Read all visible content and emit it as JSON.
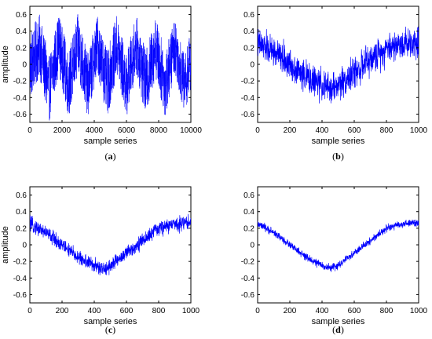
{
  "chart_data": [
    {
      "type": "line",
      "caption": "(a)",
      "xlabel": "sample series",
      "ylabel": "amplitude",
      "xlim": [
        0,
        10000
      ],
      "ylim": [
        -0.7,
        0.7
      ],
      "xticks": [
        0,
        2000,
        4000,
        6000,
        8000,
        10000
      ],
      "yticks": [
        0.6,
        0.4,
        0.2,
        0,
        -0.2,
        -0.4,
        -0.6
      ],
      "ytick_labels": [
        "0.6",
        "0.4",
        "0.2",
        "0",
        "-0.2",
        "-0.4",
        "-0.6"
      ],
      "series": [
        {
          "color": "#0000ff",
          "description_values": {
            "x": [
              0,
              600,
              1200,
              1800,
              2400,
              3000,
              3600,
              4200,
              4800,
              5400,
              6000,
              6600,
              7200,
              7800,
              8400,
              9000,
              9600,
              10000
            ],
            "upper_envelope": [
              0.4,
              0.6,
              0.1,
              0.62,
              0.15,
              0.62,
              0.12,
              0.6,
              0.15,
              0.6,
              0.12,
              0.6,
              0.15,
              0.6,
              0.15,
              0.58,
              0.1,
              0.4
            ],
            "lower_envelope": [
              -0.45,
              -0.15,
              -0.7,
              -0.1,
              -0.65,
              -0.15,
              -0.65,
              -0.1,
              -0.65,
              -0.15,
              -0.65,
              -0.1,
              -0.65,
              -0.15,
              -0.65,
              -0.1,
              -0.6,
              -0.3
            ]
          }
        }
      ]
    },
    {
      "type": "line",
      "caption": "(b)",
      "xlabel": "sample series",
      "ylabel": "",
      "xlim": [
        0,
        1000
      ],
      "ylim": [
        -0.7,
        0.7
      ],
      "xticks": [
        0,
        200,
        400,
        600,
        800,
        1000
      ],
      "yticks": [
        0.6,
        0.4,
        0.2,
        0,
        -0.2,
        -0.4,
        -0.6
      ],
      "ytick_labels": [
        "0.6",
        "0.4",
        "0.2",
        "0",
        "-0.2",
        "-0.4",
        "-0.6"
      ],
      "series": [
        {
          "color": "#0000ff",
          "x": [
            0,
            100,
            200,
            300,
            400,
            450,
            500,
            600,
            700,
            800,
            900,
            1000
          ],
          "values": [
            0.25,
            0.15,
            0.0,
            -0.15,
            -0.25,
            -0.3,
            -0.25,
            -0.1,
            0.05,
            0.2,
            0.25,
            0.28
          ],
          "noise_amplitude": 0.15
        }
      ]
    },
    {
      "type": "line",
      "caption": "(c)",
      "xlabel": "sample series",
      "ylabel": "amplitude",
      "xlim": [
        0,
        1000
      ],
      "ylim": [
        -0.7,
        0.7
      ],
      "xticks": [
        0,
        200,
        400,
        600,
        800,
        1000
      ],
      "yticks": [
        0.6,
        0.4,
        0.2,
        0,
        -0.2,
        -0.4,
        -0.6
      ],
      "ytick_labels": [
        "0.6",
        "0.4",
        "0.2",
        "0",
        "-0.2",
        "-0.4",
        "-0.6"
      ],
      "series": [
        {
          "color": "#0000ff",
          "x": [
            0,
            100,
            200,
            300,
            400,
            450,
            500,
            600,
            700,
            800,
            900,
            1000
          ],
          "values": [
            0.25,
            0.15,
            0.0,
            -0.15,
            -0.25,
            -0.3,
            -0.25,
            -0.1,
            0.05,
            0.2,
            0.25,
            0.28
          ],
          "noise_amplitude": 0.07
        }
      ]
    },
    {
      "type": "line",
      "caption": "(d)",
      "xlabel": "sample series",
      "ylabel": "",
      "xlim": [
        0,
        1000
      ],
      "ylim": [
        -0.7,
        0.7
      ],
      "xticks": [
        0,
        200,
        400,
        600,
        800,
        1000
      ],
      "yticks": [
        0.6,
        0.4,
        0.2,
        0,
        -0.2,
        -0.4,
        -0.6
      ],
      "ytick_labels": [
        "0.6",
        "0.4",
        "0.2",
        "0",
        "-0.2",
        "-0.4",
        "-0.6"
      ],
      "series": [
        {
          "color": "#0000ff",
          "x": [
            0,
            100,
            200,
            300,
            400,
            450,
            500,
            600,
            700,
            800,
            900,
            1000
          ],
          "values": [
            0.25,
            0.15,
            0.0,
            -0.15,
            -0.25,
            -0.28,
            -0.25,
            -0.1,
            0.05,
            0.2,
            0.25,
            0.27
          ],
          "noise_amplitude": 0.035
        }
      ]
    }
  ]
}
